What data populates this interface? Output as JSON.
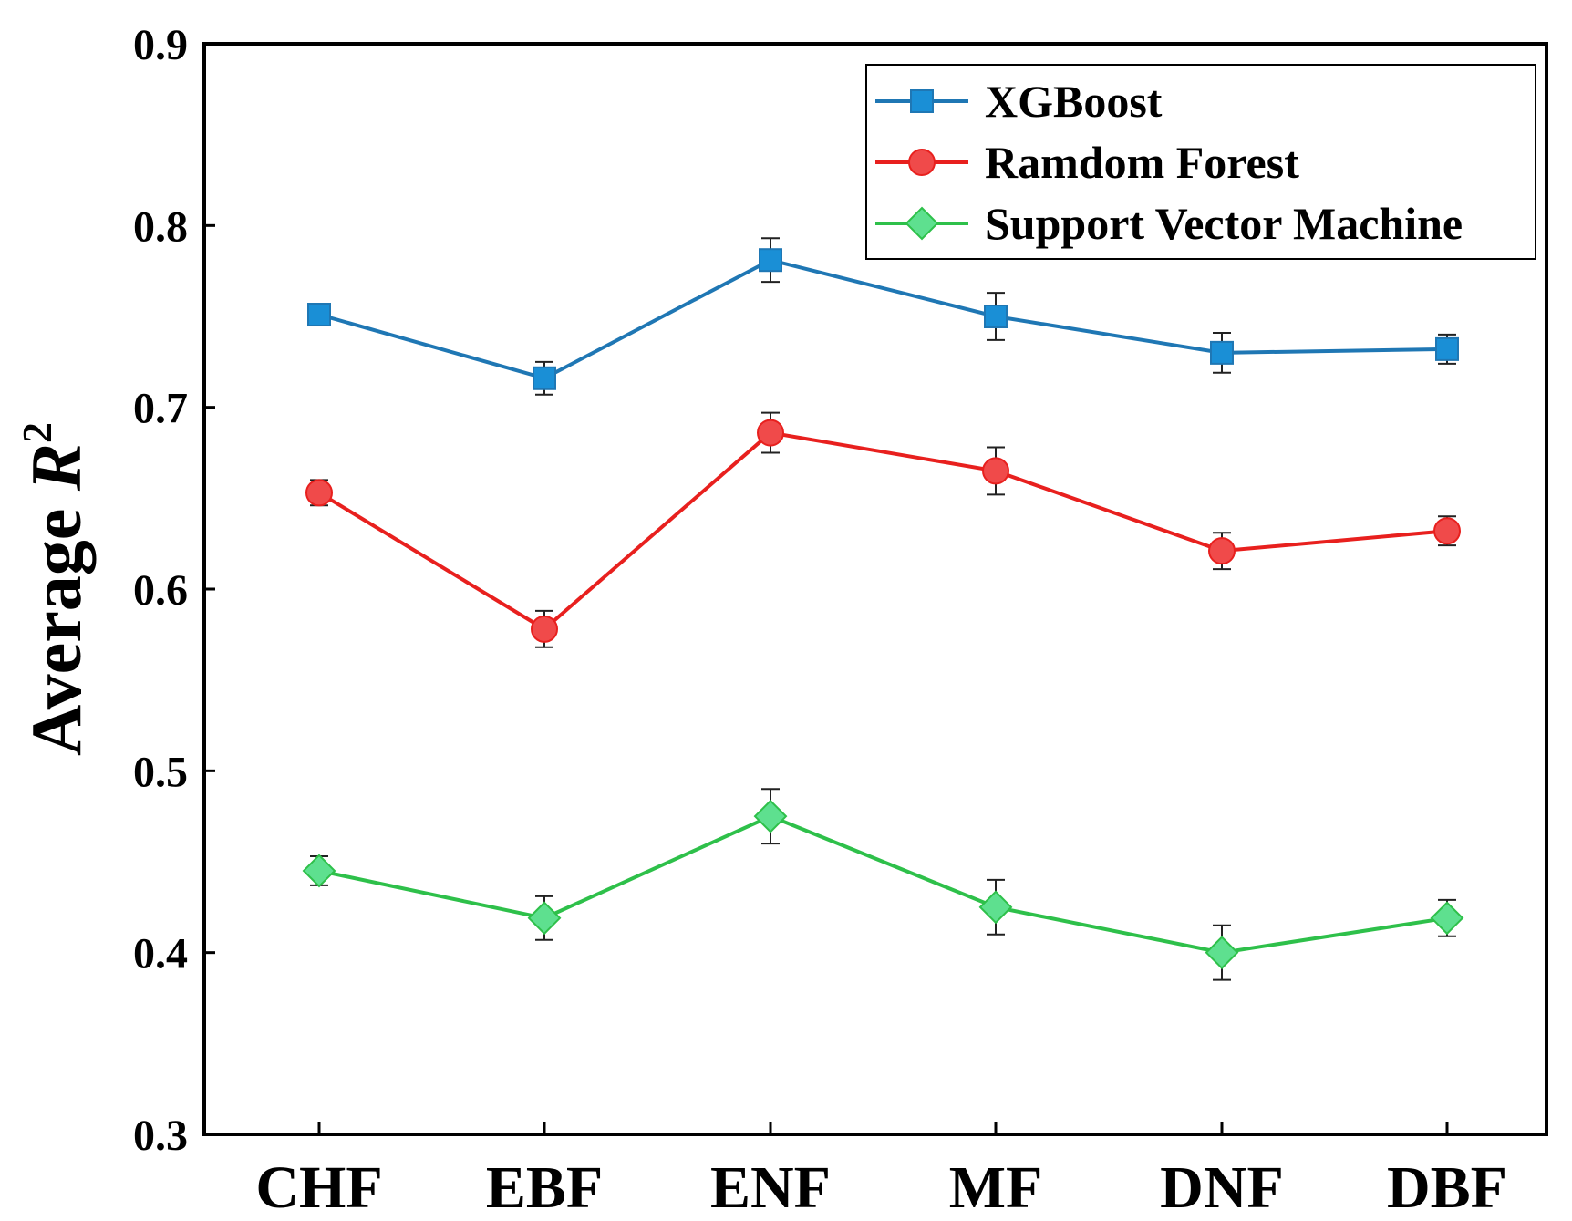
{
  "chart_data": {
    "type": "line",
    "title": "",
    "xlabel": "",
    "ylabel": "Average",
    "ylabel_symbol": "R",
    "ylabel_superscript": "2",
    "ylim": [
      0.3,
      0.9
    ],
    "yticks": [
      "0.3",
      "0.4",
      "0.5",
      "0.6",
      "0.7",
      "0.8",
      "0.9"
    ],
    "categories": [
      "CHF",
      "EBF",
      "ENF",
      "MF",
      "DNF",
      "DBF"
    ],
    "legend_position": "top-right",
    "series": [
      {
        "name": "XGBoost",
        "color": "#1f77b4",
        "marker_fill": "#1a8fd6",
        "marker": "square",
        "values": [
          0.751,
          0.716,
          0.781,
          0.75,
          0.73,
          0.732
        ],
        "errors": [
          0.005,
          0.009,
          0.012,
          0.013,
          0.011,
          0.008
        ]
      },
      {
        "name": "Ramdom Forest",
        "color": "#e8201e",
        "marker_fill": "#f04a4a",
        "marker": "circle",
        "values": [
          0.653,
          0.578,
          0.686,
          0.665,
          0.621,
          0.632
        ],
        "errors": [
          0.007,
          0.01,
          0.011,
          0.013,
          0.01,
          0.008
        ]
      },
      {
        "name": "Support Vector Machine",
        "color": "#2ec04a",
        "marker_fill": "#5ee08f",
        "marker": "diamond",
        "values": [
          0.445,
          0.419,
          0.475,
          0.425,
          0.4,
          0.419
        ],
        "errors": [
          0.008,
          0.012,
          0.015,
          0.015,
          0.015,
          0.01
        ]
      }
    ]
  }
}
